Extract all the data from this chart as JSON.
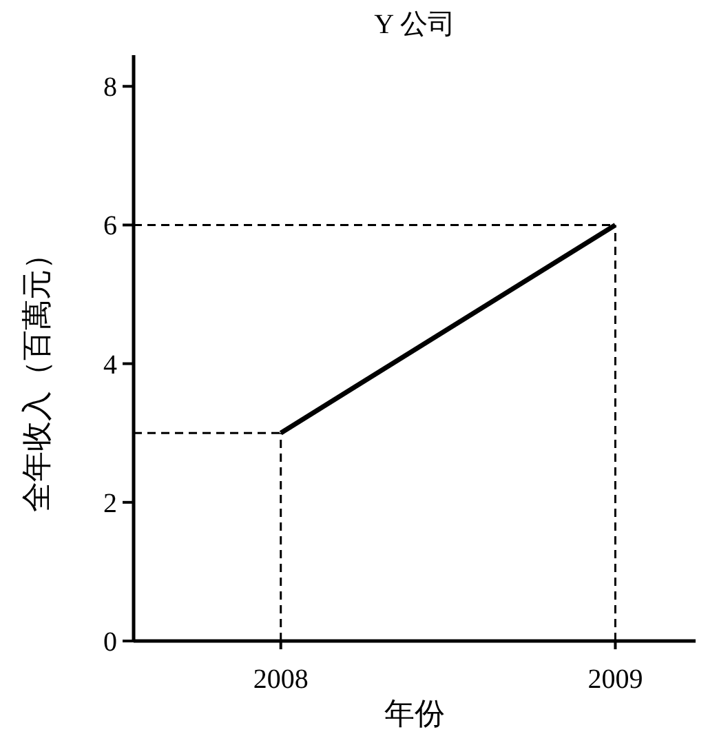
{
  "chart_data": {
    "type": "line",
    "title": "Y 公司",
    "xlabel": "年份",
    "ylabel": "全年收入（百萬元）",
    "x": [
      2008,
      2009
    ],
    "series": [
      {
        "color": "#000000",
        "values": [
          3,
          6
        ]
      }
    ],
    "xlim": [
      2007.56,
      2009.24
    ],
    "xticks": [
      2008,
      2009
    ],
    "ylim": [
      0,
      8.45
    ],
    "yticks": [
      0,
      2,
      4,
      6,
      8
    ],
    "ref_lines": [
      {
        "axis": "y",
        "value": 3,
        "line_style": "dashed",
        "color": "#000000"
      },
      {
        "axis": "y",
        "value": 6,
        "line_style": "dashed",
        "color": "#000000"
      },
      {
        "axis": "x",
        "value": 2008,
        "line_style": "dashed",
        "color": "#000000"
      },
      {
        "axis": "x",
        "value": 2009,
        "line_style": "dashed",
        "color": "#000000"
      }
    ],
    "marker": "none",
    "line_style": "solid"
  }
}
